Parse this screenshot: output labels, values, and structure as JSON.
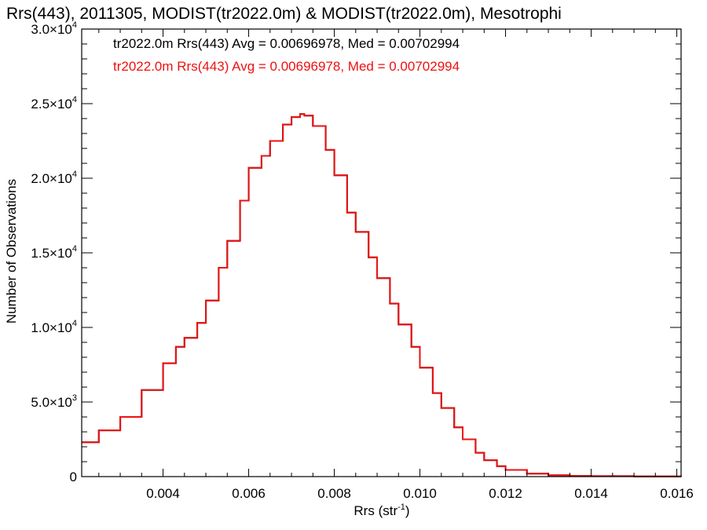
{
  "chart_data": {
    "type": "line",
    "title": "Rrs(443), 2011305, MODIST(tr2022.0m) & MODIST(tr2022.0m), Mesotrophi",
    "xlabel": "Rrs (str",
    "xlabel_sup": "-1",
    "xlabel_end": ")",
    "ylabel": "Number of Observations",
    "xlim": [
      0.0021,
      0.0161
    ],
    "ylim": [
      0,
      30000
    ],
    "x_ticks": [
      0.004,
      0.006,
      0.008,
      0.01,
      0.012,
      0.014,
      0.016
    ],
    "x_tick_labels": [
      "0.004",
      "0.006",
      "0.008",
      "0.010",
      "0.012",
      "0.014",
      "0.016"
    ],
    "y_ticks": [
      0,
      5000,
      10000,
      15000,
      20000,
      25000,
      30000
    ],
    "y_tick_labels": [
      {
        "mant": "0",
        "exp": ""
      },
      {
        "mant": "5.0×10",
        "exp": "3"
      },
      {
        "mant": "1.0×10",
        "exp": "4"
      },
      {
        "mant": "1.5×10",
        "exp": "4"
      },
      {
        "mant": "2.0×10",
        "exp": "4"
      },
      {
        "mant": "2.5×10",
        "exp": "4"
      },
      {
        "mant": "3.0×10",
        "exp": "4"
      }
    ],
    "legend_position": "top-left",
    "series": [
      {
        "name": "tr2022.0m Rrs(443) Avg = 0.00696978, Med = 0.00702994",
        "color": "#000000",
        "step": true,
        "x": [
          0.0021,
          0.0025,
          0.003,
          0.0035,
          0.004,
          0.0043,
          0.0045,
          0.0048,
          0.005,
          0.0053,
          0.0055,
          0.0058,
          0.006,
          0.0063,
          0.0065,
          0.0068,
          0.007,
          0.0072,
          0.0073,
          0.0075,
          0.0078,
          0.008,
          0.0083,
          0.0085,
          0.0088,
          0.009,
          0.0093,
          0.0095,
          0.0098,
          0.01,
          0.0103,
          0.0105,
          0.0108,
          0.011,
          0.0113,
          0.0115,
          0.0118,
          0.012,
          0.0125,
          0.013,
          0.0135,
          0.014,
          0.015,
          0.0161
        ],
        "y": [
          2300,
          3100,
          4000,
          5800,
          7600,
          8700,
          9300,
          10300,
          11800,
          14000,
          15800,
          18500,
          20700,
          21500,
          22500,
          23600,
          24100,
          24300,
          24200,
          23500,
          21900,
          20200,
          17700,
          16400,
          14700,
          13300,
          11600,
          10200,
          8700,
          7300,
          5600,
          4600,
          3300,
          2500,
          1600,
          1100,
          700,
          450,
          200,
          90,
          50,
          30,
          15,
          5
        ]
      },
      {
        "name": "tr2022.0m Rrs(443) Avg = 0.00696978, Med = 0.00702994",
        "color": "#ee1111",
        "step": true,
        "x": [
          0.0021,
          0.0025,
          0.003,
          0.0035,
          0.004,
          0.0043,
          0.0045,
          0.0048,
          0.005,
          0.0053,
          0.0055,
          0.0058,
          0.006,
          0.0063,
          0.0065,
          0.0068,
          0.007,
          0.0072,
          0.0073,
          0.0075,
          0.0078,
          0.008,
          0.0083,
          0.0085,
          0.0088,
          0.009,
          0.0093,
          0.0095,
          0.0098,
          0.01,
          0.0103,
          0.0105,
          0.0108,
          0.011,
          0.0113,
          0.0115,
          0.0118,
          0.012,
          0.0125,
          0.013,
          0.0135,
          0.014,
          0.015,
          0.0161
        ],
        "y": [
          2300,
          3100,
          4000,
          5800,
          7600,
          8700,
          9300,
          10300,
          11800,
          14000,
          15800,
          18500,
          20700,
          21500,
          22500,
          23600,
          24100,
          24300,
          24200,
          23500,
          21900,
          20200,
          17700,
          16400,
          14700,
          13300,
          11600,
          10200,
          8700,
          7300,
          5600,
          4600,
          3300,
          2500,
          1600,
          1100,
          700,
          450,
          200,
          90,
          50,
          30,
          15,
          5
        ]
      }
    ]
  }
}
